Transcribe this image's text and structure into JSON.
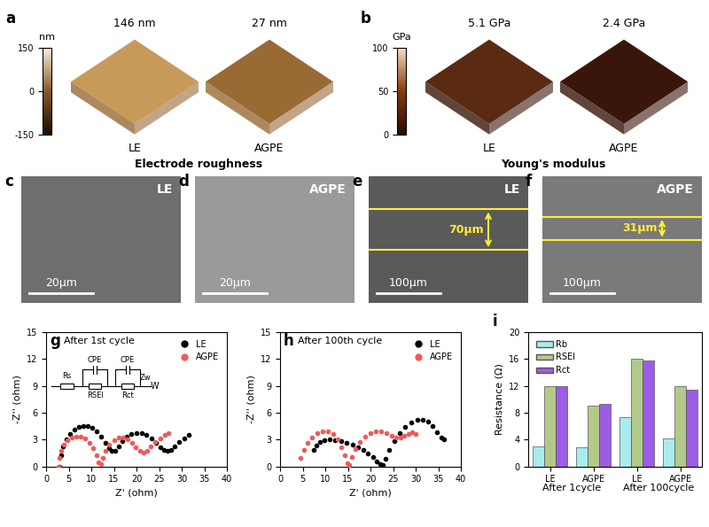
{
  "afm": [
    {
      "panel": "a",
      "caption": "Electrode roughness",
      "colorbar": {
        "label": "nm",
        "lim": [
          -150,
          150
        ],
        "ticks": [
          -150,
          0,
          150
        ]
      },
      "images": [
        {
          "name": "LE",
          "value_text": "146 nm"
        },
        {
          "name": "AGPE",
          "value_text": "27 nm"
        }
      ]
    },
    {
      "panel": "b",
      "caption": "Young's modulus",
      "colorbar": {
        "label": "GPa",
        "lim": [
          0,
          100
        ],
        "ticks": [
          0,
          50,
          100
        ]
      },
      "images": [
        {
          "name": "LE",
          "value_text": "5.1 GPa"
        },
        {
          "name": "AGPE",
          "value_text": "2.4 GPa"
        }
      ]
    }
  ],
  "sem": [
    {
      "panel": "c",
      "name": "LE",
      "scale_bar": "20µm"
    },
    {
      "panel": "d",
      "name": "AGPE",
      "scale_bar": "20µm"
    },
    {
      "panel": "e",
      "name": "LE",
      "scale_bar": "100µm",
      "thickness": "70µm"
    },
    {
      "panel": "f",
      "name": "AGPE",
      "scale_bar": "100µm",
      "thickness": "31µm"
    }
  ],
  "chart_data": [
    {
      "type": "scatter",
      "panel": "g",
      "title": "After 1st cycle",
      "x_label": "Z' (ohm)",
      "y_label": "-Z'' (ohm)",
      "xlim": [
        0,
        40
      ],
      "xticks": [
        0,
        5,
        10,
        15,
        20,
        25,
        30,
        35,
        40
      ],
      "ylim": [
        0,
        15
      ],
      "yticks": [
        0,
        3,
        6,
        9,
        12,
        15
      ],
      "legend": "upper right",
      "circuit": {
        "labels": [
          "Rs",
          "CPE",
          "RSEI",
          "CPE",
          "Rct",
          "Zw",
          "W"
        ]
      },
      "series": [
        {
          "name": "LE",
          "color": "#000000",
          "marker": "o",
          "x": [
            3.0,
            3.3,
            3.8,
            4.5,
            5.3,
            6.2,
            7.2,
            8.2,
            9.2,
            10.2,
            11.2,
            12.2,
            13.1,
            13.9,
            14.6,
            15.3,
            16.0,
            16.8,
            17.8,
            18.9,
            20.0,
            21.1,
            22.2,
            23.3,
            24.3,
            25.2,
            26.0,
            26.8,
            27.6,
            28.5,
            29.5,
            30.5,
            31.6
          ],
          "values": [
            0.0,
            1.2,
            2.2,
            3.0,
            3.6,
            4.1,
            4.4,
            4.5,
            4.5,
            4.3,
            3.9,
            3.3,
            2.6,
            2.0,
            1.7,
            1.7,
            2.2,
            2.8,
            3.3,
            3.6,
            3.7,
            3.7,
            3.5,
            3.1,
            2.6,
            2.1,
            1.8,
            1.7,
            1.8,
            2.2,
            2.7,
            3.1,
            3.5
          ]
        },
        {
          "name": "AGPE",
          "color": "#f05a5a",
          "marker": "o",
          "x": [
            2.8,
            3.0,
            3.4,
            4.0,
            4.8,
            5.7,
            6.7,
            7.7,
            8.7,
            9.6,
            10.4,
            11.1,
            11.6,
            12.1,
            12.6,
            13.2,
            14.0,
            15.0,
            16.0,
            17.0,
            18.0,
            19.0,
            19.9,
            20.7,
            21.5,
            22.3,
            23.2,
            24.2,
            25.2,
            26.3,
            27.0
          ],
          "values": [
            0.0,
            0.9,
            1.7,
            2.4,
            2.9,
            3.2,
            3.3,
            3.3,
            3.1,
            2.6,
            2.0,
            1.2,
            0.5,
            0.3,
            0.9,
            1.7,
            2.4,
            2.9,
            3.2,
            3.2,
            3.0,
            2.6,
            2.1,
            1.7,
            1.5,
            1.7,
            2.2,
            2.7,
            3.1,
            3.5,
            3.7
          ]
        }
      ]
    },
    {
      "type": "scatter",
      "panel": "h",
      "title": "After 100th cycle",
      "x_label": "Z' (ohm)",
      "y_label": "-Z'' (ohm)",
      "xlim": [
        0,
        40
      ],
      "xticks": [
        0,
        5,
        10,
        15,
        20,
        25,
        30,
        35,
        40
      ],
      "ylim": [
        0,
        15
      ],
      "yticks": [
        0,
        3,
        6,
        9,
        12,
        15
      ],
      "legend": "upper right",
      "series": [
        {
          "name": "LE",
          "color": "#000000",
          "marker": "o",
          "x": [
            7.5,
            8.0,
            8.8,
            9.8,
            11.0,
            12.2,
            13.5,
            14.8,
            16.0,
            17.2,
            18.4,
            19.5,
            20.5,
            21.4,
            22.2,
            22.8,
            23.4,
            24.2,
            25.2,
            26.4,
            27.7,
            29.0,
            30.3,
            31.5,
            32.7,
            33.8,
            34.8,
            35.6,
            36.2
          ],
          "values": [
            1.8,
            2.3,
            2.7,
            2.9,
            3.0,
            2.9,
            2.8,
            2.6,
            2.4,
            2.1,
            1.8,
            1.4,
            1.0,
            0.6,
            0.3,
            0.2,
            0.8,
            1.8,
            2.8,
            3.7,
            4.4,
            4.9,
            5.2,
            5.2,
            5.0,
            4.5,
            3.8,
            3.2,
            3.0
          ]
        },
        {
          "name": "AGPE",
          "color": "#f05a5a",
          "marker": "o",
          "x": [
            4.5,
            5.2,
            6.1,
            7.1,
            8.2,
            9.4,
            10.6,
            11.7,
            12.7,
            13.6,
            14.3,
            14.9,
            15.3,
            15.9,
            16.7,
            17.7,
            18.8,
            20.0,
            21.2,
            22.4,
            23.6,
            24.7,
            25.7,
            26.6,
            27.5,
            28.4,
            29.3,
            30.0
          ],
          "values": [
            0.9,
            1.8,
            2.6,
            3.2,
            3.7,
            3.9,
            3.9,
            3.6,
            3.0,
            2.1,
            1.2,
            0.4,
            0.2,
            1.0,
            1.9,
            2.7,
            3.3,
            3.7,
            3.9,
            3.9,
            3.7,
            3.4,
            3.2,
            3.2,
            3.4,
            3.6,
            3.8,
            3.6
          ]
        }
      ]
    },
    {
      "type": "bar",
      "panel": "i",
      "y_label": "Resistance (Ω)",
      "categories": [
        "LE",
        "AGPE",
        "LE",
        "AGPE"
      ],
      "groups": [
        "After 1cycle",
        "After 100cycle"
      ],
      "ylim": [
        0,
        20
      ],
      "yticks": [
        0,
        4,
        8,
        12,
        16,
        20
      ],
      "legend": "upper left",
      "series": [
        {
          "name": "Rb",
          "color": "#a8ecef",
          "values": [
            3.0,
            2.8,
            7.3,
            4.1
          ]
        },
        {
          "name": "RSEI",
          "color": "#b2c98a",
          "values": [
            12.0,
            9.1,
            16.0,
            12.0
          ]
        },
        {
          "name": "Rct",
          "color": "#9b5de5",
          "values": [
            11.9,
            9.3,
            15.8,
            11.4
          ]
        }
      ]
    }
  ]
}
